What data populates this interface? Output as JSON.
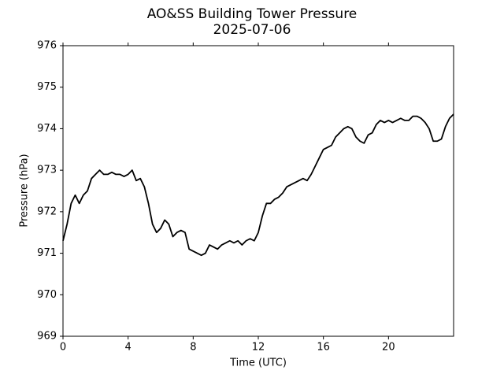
{
  "chart_data": {
    "type": "line",
    "title": "AO&SS Building Tower Pressure",
    "subtitle": "2025-07-06",
    "xlabel": "Time (UTC)",
    "ylabel": "Pressure (hPa)",
    "xlim": [
      0,
      24
    ],
    "xticks": [
      0,
      4,
      8,
      12,
      16,
      20
    ],
    "ylim": [
      969,
      976
    ],
    "yticks": [
      969,
      970,
      971,
      972,
      973,
      974,
      975,
      976
    ],
    "grid": false,
    "x": [
      0,
      0.25,
      0.5,
      0.75,
      1,
      1.25,
      1.5,
      1.75,
      2,
      2.25,
      2.5,
      2.75,
      3,
      3.25,
      3.5,
      3.75,
      4,
      4.25,
      4.5,
      4.75,
      5,
      5.25,
      5.5,
      5.75,
      6,
      6.25,
      6.5,
      6.75,
      7,
      7.25,
      7.5,
      7.75,
      8,
      8.25,
      8.5,
      8.75,
      9,
      9.25,
      9.5,
      9.75,
      10,
      10.25,
      10.5,
      10.75,
      11,
      11.25,
      11.5,
      11.75,
      12,
      12.25,
      12.5,
      12.75,
      13,
      13.25,
      13.5,
      13.75,
      14,
      14.25,
      14.5,
      14.75,
      15,
      15.25,
      15.5,
      15.75,
      16,
      16.25,
      16.5,
      16.75,
      17,
      17.25,
      17.5,
      17.75,
      18,
      18.25,
      18.5,
      18.75,
      19,
      19.25,
      19.5,
      19.75,
      20,
      20.25,
      20.5,
      20.75,
      21,
      21.25,
      21.5,
      21.75,
      22,
      22.25,
      22.5,
      22.75,
      23,
      23.25,
      23.5,
      23.75,
      24
    ],
    "series": [
      {
        "color": "#000000",
        "values": [
          971.3,
          971.7,
          972.2,
          972.4,
          972.2,
          972.4,
          972.5,
          972.8,
          972.9,
          973.0,
          972.9,
          972.9,
          972.95,
          972.9,
          972.9,
          972.85,
          972.9,
          973.0,
          972.75,
          972.8,
          972.6,
          972.2,
          971.7,
          971.5,
          971.6,
          971.8,
          971.7,
          971.4,
          971.5,
          971.55,
          971.5,
          971.1,
          971.05,
          971.0,
          970.95,
          971.0,
          971.2,
          971.15,
          971.1,
          971.2,
          971.25,
          971.3,
          971.25,
          971.3,
          971.2,
          971.3,
          971.35,
          971.3,
          971.5,
          971.9,
          972.2,
          972.2,
          972.3,
          972.35,
          972.45,
          972.6,
          972.65,
          972.7,
          972.75,
          972.8,
          972.75,
          972.9,
          973.1,
          973.3,
          973.5,
          973.55,
          973.6,
          973.8,
          973.9,
          974.0,
          974.05,
          974.0,
          973.8,
          973.7,
          973.65,
          973.85,
          973.9,
          974.1,
          974.2,
          974.15,
          974.2,
          974.15,
          974.2,
          974.25,
          974.2,
          974.2,
          974.3,
          974.3,
          974.25,
          974.15,
          974.0,
          973.7,
          973.7,
          973.75,
          974.05,
          974.25,
          974.35
        ]
      }
    ]
  }
}
